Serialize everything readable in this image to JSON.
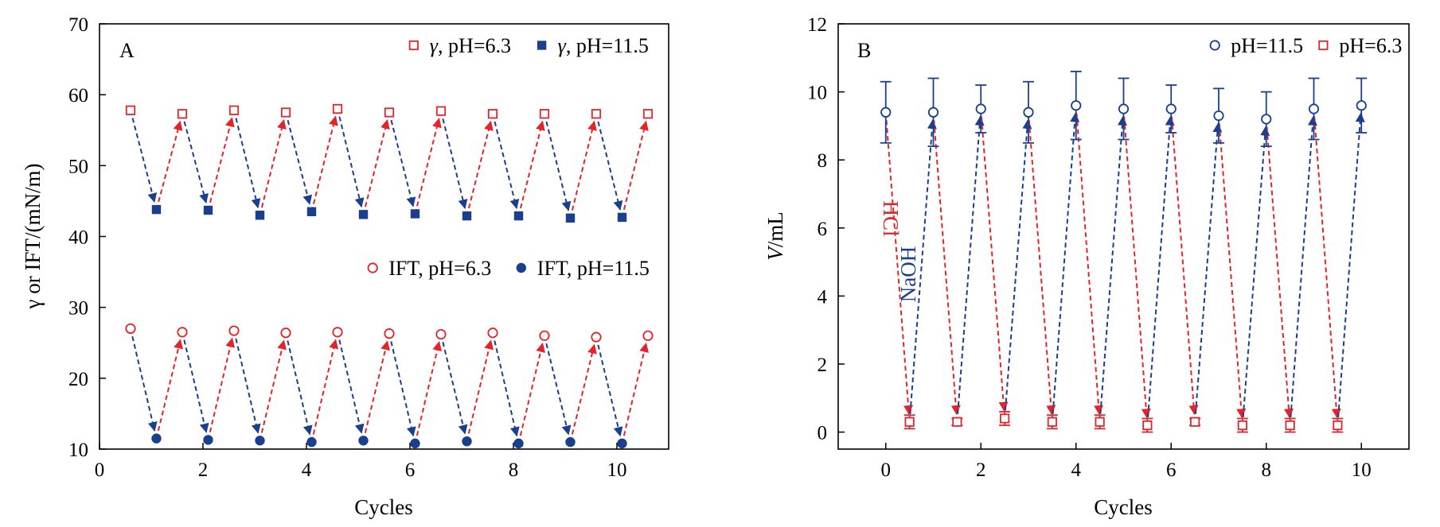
{
  "colors": {
    "red": "#e3242b",
    "blue": "#1a3f8f",
    "axis": "#000000"
  },
  "chart_data": [
    {
      "type": "line",
      "panel_label": "A",
      "xlabel": "Cycles",
      "ylabel": "γ or IFT/(mN/m)",
      "xlim": [
        0,
        11
      ],
      "ylim": [
        10,
        70
      ],
      "xticks": [
        0,
        2,
        4,
        6,
        8,
        10
      ],
      "yticks": [
        10,
        20,
        30,
        40,
        50,
        60,
        70
      ],
      "legend_top": [
        {
          "symbol": "γ",
          "text": ", pH=6.3",
          "color": "red",
          "marker": "square-open"
        },
        {
          "symbol": "γ",
          "text": ", pH=11.5",
          "color": "blue",
          "marker": "square-filled"
        }
      ],
      "legend_mid": [
        {
          "symbol": "",
          "text": "IFT, pH=6.3",
          "color": "red",
          "marker": "circle-open"
        },
        {
          "symbol": "",
          "text": "IFT, pH=11.5",
          "color": "blue",
          "marker": "circle-filled"
        }
      ],
      "series": [
        {
          "name": "γ, pH=6.3",
          "color": "red",
          "marker": "square-open",
          "x": [
            0.6,
            1.6,
            2.6,
            3.6,
            4.6,
            5.6,
            6.6,
            7.6,
            8.6,
            9.6,
            10.6
          ],
          "y": [
            57.8,
            57.3,
            57.8,
            57.5,
            58.0,
            57.5,
            57.7,
            57.3,
            57.3,
            57.3,
            57.3
          ]
        },
        {
          "name": "γ, pH=11.5",
          "color": "blue",
          "marker": "square-filled",
          "x": [
            1.1,
            2.1,
            3.1,
            4.1,
            5.1,
            6.1,
            7.1,
            8.1,
            9.1,
            10.1
          ],
          "y": [
            43.8,
            43.7,
            43.0,
            43.5,
            43.1,
            43.2,
            42.9,
            42.9,
            42.6,
            42.7
          ]
        },
        {
          "name": "IFT, pH=6.3",
          "color": "red",
          "marker": "circle-open",
          "x": [
            0.6,
            1.6,
            2.6,
            3.6,
            4.6,
            5.6,
            6.6,
            7.6,
            8.6,
            9.6,
            10.6
          ],
          "y": [
            27.0,
            26.5,
            26.7,
            26.4,
            26.5,
            26.3,
            26.2,
            26.4,
            26.0,
            25.8,
            26.0
          ]
        },
        {
          "name": "IFT, pH=11.5",
          "color": "blue",
          "marker": "circle-filled",
          "x": [
            1.1,
            2.1,
            3.1,
            4.1,
            5.1,
            6.1,
            7.1,
            8.1,
            9.1,
            10.1
          ],
          "y": [
            11.5,
            11.3,
            11.2,
            11.0,
            11.2,
            10.8,
            11.1,
            10.8,
            11.0,
            10.8
          ]
        }
      ]
    },
    {
      "type": "scatter",
      "panel_label": "B",
      "xlabel": "Cycles",
      "ylabel": "V/mL",
      "ylabel_italic": "V",
      "ylabel_rest": "/mL",
      "xlim": [
        -1,
        11
      ],
      "ylim": [
        -0.5,
        12
      ],
      "xticks": [
        0,
        2,
        4,
        6,
        8,
        10
      ],
      "yticks": [
        0,
        2,
        4,
        6,
        8,
        10,
        12
      ],
      "legend": [
        {
          "text": "pH=11.5",
          "color": "blue",
          "marker": "circle-open"
        },
        {
          "text": "pH=6.3",
          "color": "red",
          "marker": "square-open"
        }
      ],
      "annotations": {
        "acid": "HCl",
        "base": "NaOH"
      },
      "series": [
        {
          "name": "pH=11.5",
          "color": "blue",
          "marker": "circle-open",
          "x": [
            0,
            1,
            2,
            3,
            4,
            5,
            6,
            7,
            8,
            9,
            10
          ],
          "y": [
            9.4,
            9.4,
            9.5,
            9.4,
            9.6,
            9.5,
            9.5,
            9.3,
            9.2,
            9.5,
            9.6
          ],
          "err": [
            0.9,
            1.0,
            0.7,
            0.9,
            1.0,
            0.9,
            0.7,
            0.8,
            0.8,
            0.9,
            0.8
          ]
        },
        {
          "name": "pH=6.3",
          "color": "red",
          "marker": "square-open",
          "x": [
            0.5,
            1.5,
            2.5,
            3.5,
            4.5,
            5.5,
            6.5,
            7.5,
            8.5,
            9.5
          ],
          "y": [
            0.3,
            0.3,
            0.4,
            0.3,
            0.3,
            0.2,
            0.3,
            0.2,
            0.2,
            0.2
          ],
          "err": [
            0.2,
            0.1,
            0.2,
            0.2,
            0.2,
            0.2,
            0.1,
            0.2,
            0.2,
            0.2
          ]
        }
      ]
    }
  ]
}
